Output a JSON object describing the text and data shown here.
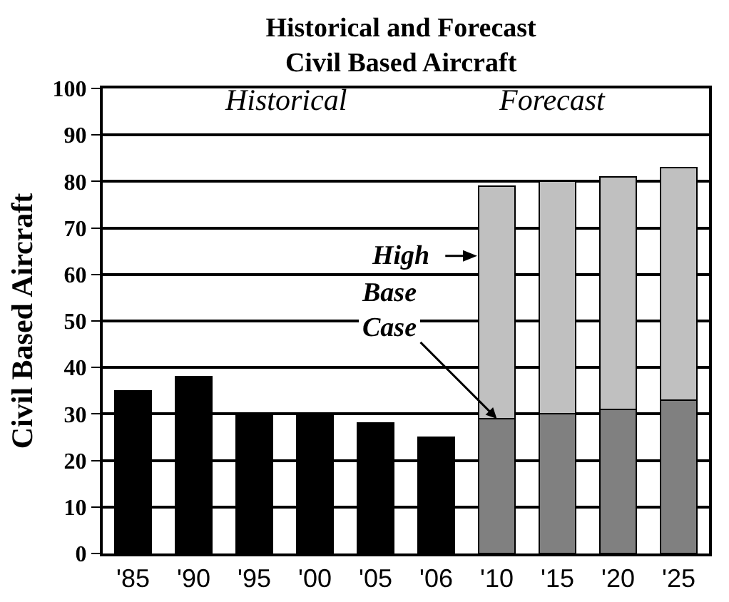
{
  "chart_data": {
    "type": "bar",
    "title": "Historical and Forecast\nCivil Based Aircraft",
    "ylabel": "Civil Based Aircraft",
    "categories": [
      "'85",
      "'90",
      "'95",
      "'00",
      "'05",
      "'06",
      "'10",
      "'15",
      "'20",
      "'25"
    ],
    "stacked": true,
    "series": [
      {
        "color": "#000000",
        "values": [
          35,
          38,
          30,
          30,
          28,
          25,
          null,
          null,
          null,
          null
        ]
      },
      {
        "color": "#808080",
        "values": [
          null,
          null,
          null,
          null,
          null,
          null,
          29,
          30,
          31,
          33
        ]
      },
      {
        "color": "#c0c0c0",
        "values": [
          null,
          null,
          null,
          null,
          null,
          null,
          50,
          50,
          50,
          50
        ]
      }
    ],
    "ylim": [
      0,
      100
    ],
    "yticks": [
      0,
      10,
      20,
      30,
      40,
      50,
      60,
      70,
      80,
      90,
      100
    ],
    "grid": "y",
    "annotations": [
      "Historical",
      "Forecast",
      "High",
      {
        "text": "Base\nCase",
        "x": "'10",
        "y": 29
      }
    ]
  }
}
